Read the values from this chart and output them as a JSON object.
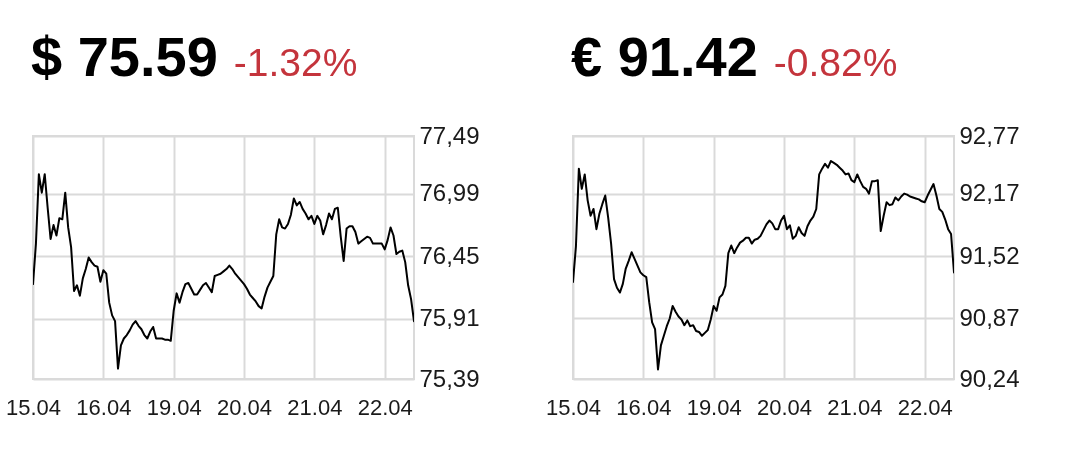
{
  "chart_data": [
    {
      "type": "line",
      "title": "$ 75.59",
      "subtitle": "-1.32%",
      "categories": [
        "15.04",
        null,
        null,
        null,
        null,
        null,
        null,
        null,
        null,
        null,
        null,
        null,
        null,
        null,
        null,
        null,
        null,
        null,
        null,
        null,
        null,
        null,
        null,
        null,
        "16.04",
        null,
        null,
        null,
        null,
        null,
        null,
        null,
        null,
        null,
        null,
        null,
        null,
        null,
        null,
        null,
        null,
        null,
        null,
        null,
        null,
        null,
        null,
        null,
        "19.04",
        null,
        null,
        null,
        null,
        null,
        null,
        null,
        null,
        null,
        null,
        null,
        null,
        null,
        null,
        null,
        null,
        null,
        null,
        null,
        null,
        null,
        null,
        null,
        "20.04",
        null,
        null,
        null,
        null,
        null,
        null,
        null,
        null,
        null,
        null,
        null,
        null,
        null,
        null,
        null,
        null,
        null,
        null,
        null,
        null,
        null,
        null,
        null,
        "21.04",
        null,
        null,
        null,
        null,
        null,
        null,
        null,
        null,
        null,
        null,
        null,
        null,
        null,
        null,
        null,
        null,
        null,
        null,
        null,
        null,
        null,
        null,
        null,
        "22.04",
        null,
        null,
        null,
        null,
        null,
        null,
        null,
        null,
        null,
        null
      ],
      "series": [
        {
          "color": "#000000",
          "values": [
            76.21,
            76.56,
            77.16,
            77.0,
            77.16,
            76.87,
            76.6,
            76.72,
            76.63,
            76.78,
            76.77,
            77.0,
            76.7,
            76.53,
            76.15,
            76.2,
            76.11,
            76.26,
            76.34,
            76.44,
            76.4,
            76.37,
            76.36,
            76.23,
            76.33,
            76.3,
            76.05,
            75.94,
            75.89,
            75.48,
            75.68,
            75.74,
            75.77,
            75.81,
            75.86,
            75.89,
            75.85,
            75.82,
            75.77,
            75.74,
            75.8,
            75.84,
            75.74,
            75.74,
            75.74,
            75.73,
            75.73,
            75.72,
            75.98,
            76.13,
            76.05,
            76.14,
            76.21,
            76.22,
            76.17,
            76.12,
            76.12,
            76.16,
            76.2,
            76.22,
            76.18,
            76.14,
            76.28,
            76.29,
            76.3,
            76.32,
            76.34,
            76.37,
            76.34,
            76.3,
            76.27,
            76.24,
            76.21,
            76.17,
            76.12,
            76.09,
            76.06,
            76.02,
            76.0,
            76.1,
            76.18,
            76.23,
            76.28,
            76.64,
            76.77,
            76.7,
            76.69,
            76.73,
            76.81,
            76.95,
            76.89,
            76.92,
            76.86,
            76.82,
            76.77,
            76.8,
            76.73,
            76.8,
            76.76,
            76.64,
            76.72,
            76.82,
            76.77,
            76.86,
            76.87,
            76.62,
            76.41,
            76.69,
            76.71,
            76.71,
            76.66,
            76.56,
            76.58,
            76.6,
            76.62,
            76.61,
            76.56,
            76.56,
            76.56,
            76.56,
            76.51,
            76.59,
            76.7,
            76.63,
            76.47,
            76.49,
            76.5,
            76.4,
            76.2,
            76.08,
            75.89
          ]
        }
      ],
      "ylim": [
        75.39,
        77.49
      ],
      "yticks": [
        {
          "value": 75.39,
          "label": "75,39"
        },
        {
          "value": 75.91,
          "label": "75,91"
        },
        {
          "value": 76.45,
          "label": "76,45"
        },
        {
          "value": 76.99,
          "label": "76,99"
        },
        {
          "value": 77.49,
          "label": "77,49"
        }
      ],
      "grid": true
    },
    {
      "type": "line",
      "title": "€ 91.42",
      "subtitle": "-0.82%",
      "categories": [
        "15.04",
        null,
        null,
        null,
        null,
        null,
        null,
        null,
        null,
        null,
        null,
        null,
        null,
        null,
        null,
        null,
        null,
        null,
        null,
        null,
        null,
        null,
        null,
        null,
        "16.04",
        null,
        null,
        null,
        null,
        null,
        null,
        null,
        null,
        null,
        null,
        null,
        null,
        null,
        null,
        null,
        null,
        null,
        null,
        null,
        null,
        null,
        null,
        null,
        "19.04",
        null,
        null,
        null,
        null,
        null,
        null,
        null,
        null,
        null,
        null,
        null,
        null,
        null,
        null,
        null,
        null,
        null,
        null,
        null,
        null,
        null,
        null,
        null,
        "20.04",
        null,
        null,
        null,
        null,
        null,
        null,
        null,
        null,
        null,
        null,
        null,
        null,
        null,
        null,
        null,
        null,
        null,
        null,
        null,
        null,
        null,
        null,
        null,
        "21.04",
        null,
        null,
        null,
        null,
        null,
        null,
        null,
        null,
        null,
        null,
        null,
        null,
        null,
        null,
        null,
        null,
        null,
        null,
        null,
        null,
        null,
        null,
        null,
        "22.04",
        null,
        null,
        null,
        null,
        null,
        null,
        null,
        null,
        null,
        null
      ],
      "series": [
        {
          "color": "#000000",
          "values": [
            91.25,
            91.62,
            92.43,
            92.22,
            92.37,
            92.1,
            91.94,
            92.01,
            91.8,
            91.96,
            92.06,
            92.15,
            91.92,
            91.65,
            91.28,
            91.19,
            91.14,
            91.23,
            91.39,
            91.47,
            91.56,
            91.49,
            91.42,
            91.35,
            91.32,
            91.3,
            91.04,
            90.83,
            90.76,
            90.34,
            90.59,
            90.69,
            90.79,
            90.87,
            91.0,
            90.94,
            90.89,
            90.86,
            90.8,
            90.85,
            90.79,
            90.8,
            90.74,
            90.73,
            90.69,
            90.72,
            90.75,
            90.86,
            91.0,
            90.95,
            91.09,
            91.12,
            91.21,
            91.55,
            91.63,
            91.55,
            91.61,
            91.66,
            91.68,
            91.71,
            91.71,
            91.65,
            91.69,
            91.7,
            91.73,
            91.79,
            91.85,
            91.89,
            91.86,
            91.8,
            91.8,
            91.89,
            91.94,
            91.8,
            91.84,
            91.7,
            91.73,
            91.82,
            91.76,
            91.73,
            91.83,
            91.89,
            91.93,
            92.01,
            92.37,
            92.43,
            92.48,
            92.44,
            92.51,
            92.49,
            92.47,
            92.44,
            92.41,
            92.37,
            92.38,
            92.31,
            92.29,
            92.37,
            92.3,
            92.24,
            92.22,
            92.17,
            92.3,
            92.3,
            92.31,
            91.78,
            91.94,
            92.08,
            92.05,
            92.06,
            92.13,
            92.1,
            92.14,
            92.17,
            92.16,
            92.14,
            92.13,
            92.12,
            92.11,
            92.09,
            92.08,
            92.15,
            92.21,
            92.27,
            92.15,
            92.01,
            91.98,
            91.9,
            91.8,
            91.75,
            91.35
          ]
        }
      ],
      "ylim": [
        90.24,
        92.77
      ],
      "yticks": [
        {
          "value": 90.24,
          "label": "90,24"
        },
        {
          "value": 90.87,
          "label": "90,87"
        },
        {
          "value": 91.52,
          "label": "91,52"
        },
        {
          "value": 92.17,
          "label": "92,17"
        },
        {
          "value": 92.77,
          "label": "92,77"
        }
      ],
      "grid": true
    }
  ]
}
